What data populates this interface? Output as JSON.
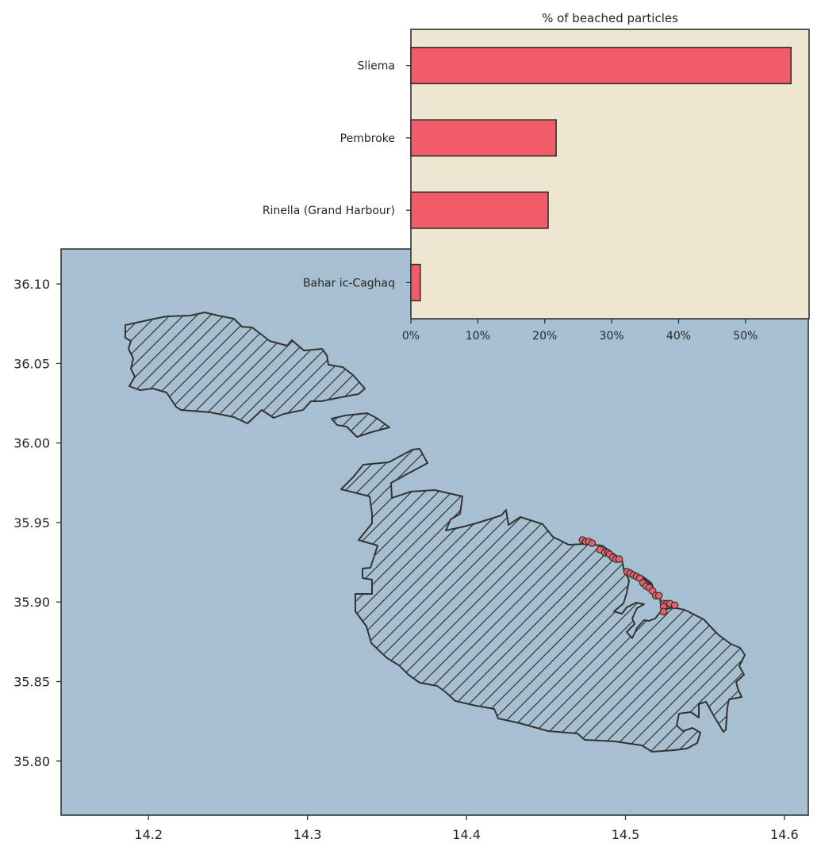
{
  "chart_data": [
    {
      "type": "map",
      "xticks": [
        "14.2",
        "14.3",
        "14.4",
        "14.5",
        "14.6"
      ],
      "yticks": [
        "36.10",
        "36.05",
        "36.00",
        "35.95",
        "35.90",
        "35.85",
        "35.80"
      ],
      "xlim": [
        14.145,
        14.615
      ],
      "ylim": [
        35.766,
        36.122
      ],
      "grid": false,
      "colors": {
        "sea": "#a6c0d2",
        "land": "#efe6d2",
        "edge": "#333333",
        "points": "#f25c69"
      },
      "beached_points": [
        [
          14.473,
          35.939
        ],
        [
          14.475,
          35.938
        ],
        [
          14.477,
          35.938
        ],
        [
          14.479,
          35.937
        ],
        [
          14.484,
          35.933
        ],
        [
          14.487,
          35.931
        ],
        [
          14.489,
          35.931
        ],
        [
          14.49,
          35.93
        ],
        [
          14.492,
          35.928
        ],
        [
          14.494,
          35.927
        ],
        [
          14.496,
          35.927
        ],
        [
          14.501,
          35.919
        ],
        [
          14.503,
          35.918
        ],
        [
          14.505,
          35.917
        ],
        [
          14.507,
          35.916
        ],
        [
          14.509,
          35.915
        ],
        [
          14.511,
          35.912
        ],
        [
          14.513,
          35.91
        ],
        [
          14.515,
          35.909
        ],
        [
          14.517,
          35.907
        ],
        [
          14.519,
          35.904
        ],
        [
          14.521,
          35.904
        ],
        [
          14.524,
          35.899
        ],
        [
          14.526,
          35.899
        ],
        [
          14.528,
          35.899
        ],
        [
          14.531,
          35.898
        ],
        [
          14.524,
          35.897
        ],
        [
          14.524,
          35.894
        ]
      ]
    },
    {
      "type": "bar",
      "orientation": "horizontal",
      "title": "% of beached particles",
      "categories": [
        "Sliema",
        "Pembroke",
        "Rinella (Grand Harbour)",
        "Bahar ic-Caghaq"
      ],
      "values": [
        56.8,
        21.7,
        20.5,
        1.4
      ],
      "xticks": [
        "0%",
        "10%",
        "20%",
        "30%",
        "40%",
        "50%"
      ],
      "xlim": [
        0,
        59.5
      ],
      "colors": {
        "bar": "#f25c69",
        "background": "#efe6d2",
        "edge": "#333333"
      }
    }
  ]
}
